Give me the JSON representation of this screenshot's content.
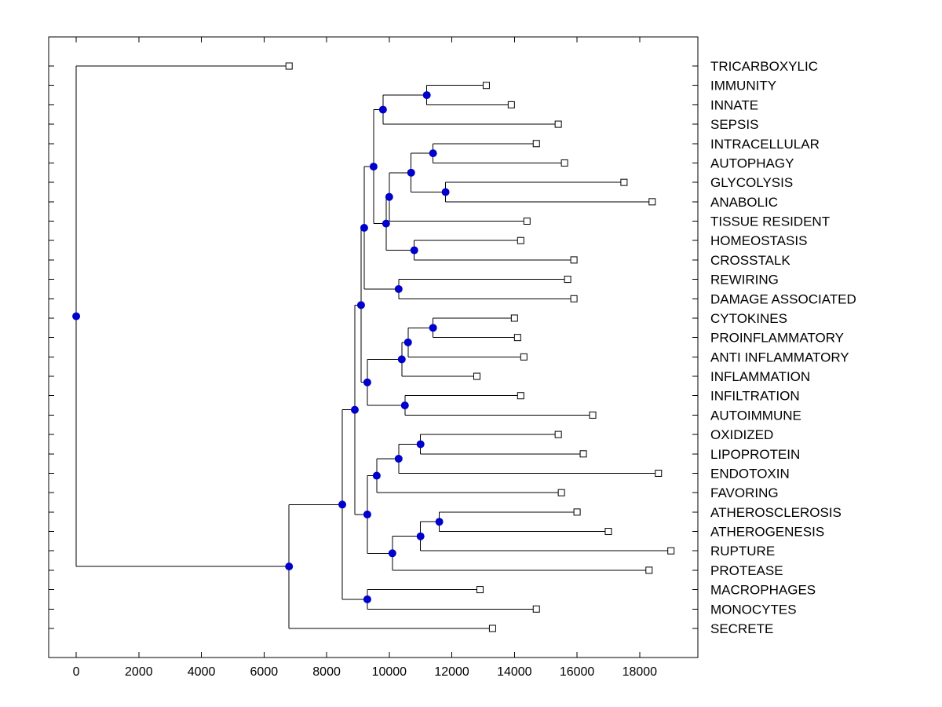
{
  "figure": {
    "background_color": "#FFFFFF",
    "title": ""
  },
  "chart_data": {
    "type": "dendrogram",
    "orientation": "horizontal-root-left",
    "title": "",
    "xlabel": "",
    "ylabel": "",
    "grid": false,
    "x_tick_labels": [
      "0",
      "2000",
      "4000",
      "6000",
      "8000",
      "10000",
      "12000",
      "14000",
      "16000",
      "18000"
    ],
    "x_tick_values": [
      0,
      2000,
      4000,
      6000,
      8000,
      10000,
      12000,
      14000,
      16000,
      18000
    ],
    "x_axis_range": [
      -880,
      19860
    ],
    "styles": {
      "axis_color": "#000000",
      "branch_color": "#000000",
      "internal_node_marker": "filled-circle",
      "internal_node_color": "#0000CC",
      "leaf_marker": "open-square",
      "leaf_marker_fill": "#FFFFFF",
      "leaf_marker_edge": "#000000",
      "label_color": "#000000"
    },
    "leaves": [
      {
        "label": "TRICARBOXYLIC",
        "distance": 6800
      },
      {
        "label": "IMMUNITY",
        "distance": 13100
      },
      {
        "label": "INNATE",
        "distance": 13900
      },
      {
        "label": "SEPSIS",
        "distance": 15400
      },
      {
        "label": "INTRACELLULAR",
        "distance": 14700
      },
      {
        "label": "AUTOPHAGY",
        "distance": 15600
      },
      {
        "label": "GLYCOLYSIS",
        "distance": 17500
      },
      {
        "label": "ANABOLIC",
        "distance": 18400
      },
      {
        "label": "TISSUE RESIDENT",
        "distance": 14400
      },
      {
        "label": "HOMEOSTASIS",
        "distance": 14200
      },
      {
        "label": "CROSSTALK",
        "distance": 15900
      },
      {
        "label": "REWIRING",
        "distance": 15700
      },
      {
        "label": "DAMAGE ASSOCIATED",
        "distance": 15900
      },
      {
        "label": "CYTOKINES",
        "distance": 14000
      },
      {
        "label": "PROINFLAMMATORY",
        "distance": 14100
      },
      {
        "label": "ANTI INFLAMMATORY",
        "distance": 14300
      },
      {
        "label": "INFLAMMATION",
        "distance": 12800
      },
      {
        "label": "INFILTRATION",
        "distance": 14200
      },
      {
        "label": "AUTOIMMUNE",
        "distance": 16500
      },
      {
        "label": "OXIDIZED",
        "distance": 15400
      },
      {
        "label": "LIPOPROTEIN",
        "distance": 16200
      },
      {
        "label": "ENDOTOXIN",
        "distance": 18600
      },
      {
        "label": "FAVORING",
        "distance": 15500
      },
      {
        "label": "ATHEROSCLEROSIS",
        "distance": 16000
      },
      {
        "label": "ATHEROGENESIS",
        "distance": 17000
      },
      {
        "label": "RUPTURE",
        "distance": 19000
      },
      {
        "label": "PROTEASE",
        "distance": 18300
      },
      {
        "label": "MACROPHAGES",
        "distance": 12900
      },
      {
        "label": "MONOCYTES",
        "distance": 14700
      },
      {
        "label": "SECRETE",
        "distance": 13300
      }
    ],
    "tree": {
      "d": 0,
      "children": [
        {
          "name": "TRICARBOXYLIC",
          "d": 6800
        },
        {
          "d": 6800,
          "children": [
            {
              "d": 8500,
              "children": [
                {
                  "d": 8900,
                  "children": [
                    {
                      "d": 9100,
                      "children": [
                        {
                          "d": 9200,
                          "children": [
                            {
                              "d": 9500,
                              "children": [
                                {
                                  "d": 9800,
                                  "children": [
                                    {
                                      "d": 11200,
                                      "children": [
                                        {
                                          "name": "IMMUNITY",
                                          "d": 13100
                                        },
                                        {
                                          "name": "INNATE",
                                          "d": 13900
                                        }
                                      ]
                                    },
                                    {
                                      "name": "SEPSIS",
                                      "d": 15400
                                    }
                                  ]
                                },
                                {
                                  "d": 9900,
                                  "children": [
                                    {
                                      "d": 10000,
                                      "children": [
                                        {
                                          "d": 10700,
                                          "children": [
                                            {
                                              "d": 11400,
                                              "children": [
                                                {
                                                  "name": "INTRACELLULAR",
                                                  "d": 14700
                                                },
                                                {
                                                  "name": "AUTOPHAGY",
                                                  "d": 15600
                                                }
                                              ]
                                            },
                                            {
                                              "d": 11800,
                                              "children": [
                                                {
                                                  "name": "GLYCOLYSIS",
                                                  "d": 17500
                                                },
                                                {
                                                  "name": "ANABOLIC",
                                                  "d": 18400
                                                }
                                              ]
                                            }
                                          ]
                                        },
                                        {
                                          "name": "TISSUE RESIDENT",
                                          "d": 14400
                                        }
                                      ]
                                    },
                                    {
                                      "d": 10800,
                                      "children": [
                                        {
                                          "name": "HOMEOSTASIS",
                                          "d": 14200
                                        },
                                        {
                                          "name": "CROSSTALK",
                                          "d": 15900
                                        }
                                      ]
                                    }
                                  ]
                                }
                              ]
                            },
                            {
                              "d": 10300,
                              "children": [
                                {
                                  "name": "REWIRING",
                                  "d": 15700
                                },
                                {
                                  "name": "DAMAGE ASSOCIATED",
                                  "d": 15900
                                }
                              ]
                            }
                          ]
                        },
                        {
                          "d": 9300,
                          "children": [
                            {
                              "d": 10400,
                              "children": [
                                {
                                  "d": 10600,
                                  "children": [
                                    {
                                      "d": 11400,
                                      "children": [
                                        {
                                          "name": "CYTOKINES",
                                          "d": 14000
                                        },
                                        {
                                          "name": "PROINFLAMMATORY",
                                          "d": 14100
                                        }
                                      ]
                                    },
                                    {
                                      "name": "ANTI INFLAMMATORY",
                                      "d": 14300
                                    }
                                  ]
                                },
                                {
                                  "name": "INFLAMMATION",
                                  "d": 12800
                                }
                              ]
                            },
                            {
                              "d": 10500,
                              "children": [
                                {
                                  "name": "INFILTRATION",
                                  "d": 14200
                                },
                                {
                                  "name": "AUTOIMMUNE",
                                  "d": 16500
                                }
                              ]
                            }
                          ]
                        }
                      ]
                    },
                    {
                      "d": 9300,
                      "children": [
                        {
                          "d": 9600,
                          "children": [
                            {
                              "d": 10300,
                              "children": [
                                {
                                  "d": 11000,
                                  "children": [
                                    {
                                      "name": "OXIDIZED",
                                      "d": 15400
                                    },
                                    {
                                      "name": "LIPOPROTEIN",
                                      "d": 16200
                                    }
                                  ]
                                },
                                {
                                  "name": "ENDOTOXIN",
                                  "d": 18600
                                }
                              ]
                            },
                            {
                              "name": "FAVORING",
                              "d": 15500
                            }
                          ]
                        },
                        {
                          "d": 10100,
                          "children": [
                            {
                              "d": 11000,
                              "children": [
                                {
                                  "d": 11600,
                                  "children": [
                                    {
                                      "name": "ATHEROSCLEROSIS",
                                      "d": 16000
                                    },
                                    {
                                      "name": "ATHEROGENESIS",
                                      "d": 17000
                                    }
                                  ]
                                },
                                {
                                  "name": "RUPTURE",
                                  "d": 19000
                                }
                              ]
                            },
                            {
                              "name": "PROTEASE",
                              "d": 18300
                            }
                          ]
                        }
                      ]
                    }
                  ]
                },
                {
                  "d": 9300,
                  "children": [
                    {
                      "name": "MACROPHAGES",
                      "d": 12900
                    },
                    {
                      "name": "MONOCYTES",
                      "d": 14700
                    }
                  ]
                }
              ]
            },
            {
              "name": "SECRETE",
              "d": 13300
            }
          ]
        }
      ]
    }
  }
}
